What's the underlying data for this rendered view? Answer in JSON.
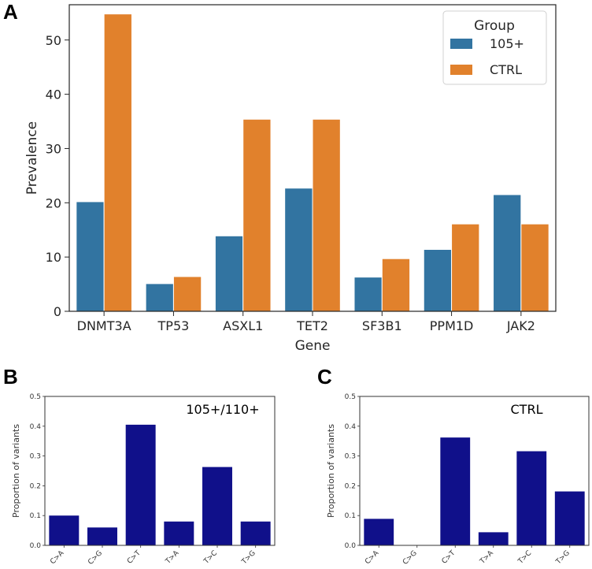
{
  "colors": {
    "c105": "#3274a1",
    "ctrl": "#e1812c",
    "navy": "#10108a"
  },
  "chart_data": [
    {
      "panel": "A",
      "type": "bar",
      "title": "",
      "xlabel": "Gene",
      "ylabel": "Prevalence",
      "categories": [
        "DNMT3A",
        "TP53",
        "ASXL1",
        "TET2",
        "SF3B1",
        "PPM1D",
        "JAK2"
      ],
      "series": [
        {
          "name": "105+",
          "values": [
            20.2,
            5.1,
            13.9,
            22.7,
            6.3,
            11.4,
            21.5
          ]
        },
        {
          "name": "CTRL",
          "values": [
            54.8,
            6.4,
            35.4,
            35.4,
            9.7,
            16.1,
            16.1
          ]
        }
      ],
      "ylim": [
        0,
        56.5
      ],
      "yticks": [
        "0",
        "10",
        "20",
        "30",
        "40",
        "50"
      ],
      "legend": {
        "title": "Group",
        "position": "top-right"
      }
    },
    {
      "panel": "B",
      "type": "bar",
      "annotation": "105+/110+",
      "ylabel": "Proportion of variants",
      "categories": [
        "C>A",
        "C>G",
        "C>T",
        "T>A",
        "T>C",
        "T>G"
      ],
      "values": [
        0.1,
        0.06,
        0.405,
        0.08,
        0.263,
        0.08
      ],
      "ylim": [
        0,
        0.5
      ],
      "yticks": [
        "0.0",
        "0.1",
        "0.2",
        "0.3",
        "0.4",
        "0.5"
      ]
    },
    {
      "panel": "C",
      "type": "bar",
      "annotation": "CTRL",
      "ylabel": "Proportion of variants",
      "categories": [
        "C>A",
        "C>G",
        "C>T",
        "T>A",
        "T>C",
        "T>G"
      ],
      "values": [
        0.089,
        0,
        0.362,
        0.044,
        0.316,
        0.181
      ],
      "ylim": [
        0,
        0.5
      ],
      "yticks": [
        "0.0",
        "0.1",
        "0.2",
        "0.3",
        "0.4",
        "0.5"
      ]
    }
  ]
}
